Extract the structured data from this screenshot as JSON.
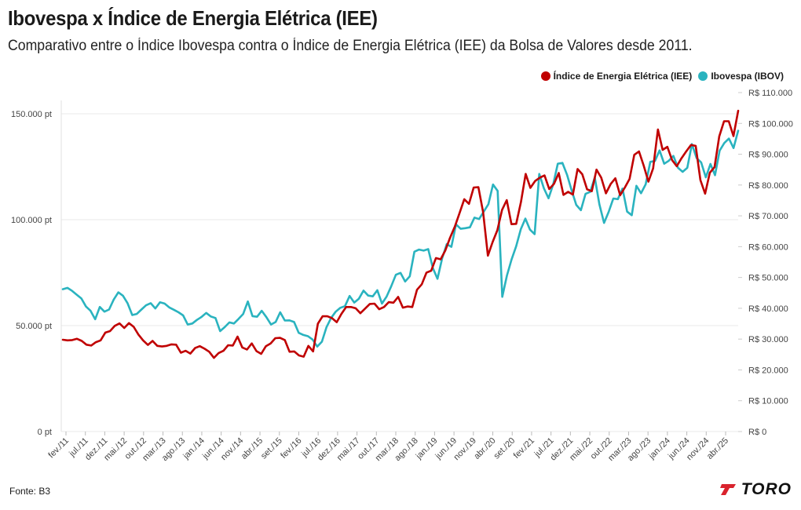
{
  "header": {
    "title": "Ibovespa x Índice de Energia Elétrica (IEE)",
    "subtitle": "Comparativo entre o Índice Ibovespa contra o Índice de Energia Elétrica (IEE) da Bolsa de Valores desde 2011."
  },
  "footer": {
    "source": "Fonte: B3",
    "logo_text": "TORO"
  },
  "colors": {
    "iee": "#c00000",
    "ibov": "#2ab3bf",
    "grid": "#e8e8e8",
    "axis_text": "#444444"
  },
  "chart_data": {
    "type": "line",
    "title": "Ibovespa x Índice de Energia Elétrica (IEE)",
    "legend_position": "top-right",
    "x_tick_labels": [
      "fev./11",
      "jul./11",
      "dez./11",
      "mai./12",
      "out./12",
      "mar./13",
      "ago./13",
      "jan./14",
      "jun./14",
      "nov./14",
      "abr./15",
      "set./15",
      "fev./16",
      "jul./16",
      "dez./16",
      "mai./17",
      "out./17",
      "mar./18",
      "ago./18",
      "jan./19",
      "jun./19",
      "nov./19",
      "abr./20",
      "set./20",
      "fev./21",
      "jul./21",
      "dez./21",
      "mai./22",
      "out./22",
      "mar./23",
      "ago./23",
      "jan./24",
      "jun./24",
      "nov./24",
      "abr./25"
    ],
    "y_left": {
      "ticks": [
        0,
        50000,
        100000,
        150000
      ],
      "tick_labels": [
        "0 pt",
        "50.000 pt",
        "100.000 pt",
        "150.000 pt"
      ],
      "range": [
        0,
        160000
      ]
    },
    "y_right": {
      "ticks": [
        0,
        10000,
        20000,
        30000,
        40000,
        50000,
        60000,
        70000,
        80000,
        90000,
        100000,
        110000
      ],
      "tick_labels": [
        "R$ 0",
        "R$ 10.000",
        "R$ 20.000",
        "R$ 30.000",
        "R$ 40.000",
        "R$ 50.000",
        "R$ 60.000",
        "R$ 70.000",
        "R$ 80.000",
        "R$ 90.000",
        "R$ 100.000",
        "R$ 110.000"
      ],
      "range": [
        0,
        110000
      ]
    },
    "series": [
      {
        "name": "Índice de Energia Elétrica (IEE)",
        "axis": "right",
        "color": "#c00000",
        "values": [
          29800,
          29600,
          29700,
          30100,
          29400,
          28200,
          27900,
          29000,
          29600,
          32100,
          32600,
          34300,
          35100,
          33600,
          35200,
          34000,
          31500,
          29600,
          28100,
          29400,
          27800,
          27600,
          27800,
          28300,
          28200,
          25600,
          26200,
          25300,
          27100,
          27700,
          26900,
          25900,
          23900,
          25500,
          26200,
          28000,
          27900,
          30800,
          27300,
          26600,
          28600,
          26100,
          25200,
          27700,
          28600,
          30300,
          30400,
          29700,
          25900,
          26000,
          24700,
          24300,
          27800,
          26000,
          35000,
          37400,
          37400,
          36800,
          35500,
          38200,
          40400,
          40400,
          40000,
          38400,
          39900,
          41400,
          41500,
          39700,
          40400,
          42000,
          41800,
          43700,
          40200,
          40600,
          40400,
          46000,
          47800,
          51600,
          52200,
          56300,
          55900,
          58800,
          62900,
          66500,
          70900,
          75400,
          73900,
          79200,
          79300,
          71200,
          57100,
          61500,
          65300,
          71900,
          75100,
          67300,
          67400,
          74500,
          83600,
          79100,
          81300,
          82400,
          83100,
          78700,
          80400,
          83900,
          76800,
          77800,
          76900,
          85200,
          83500,
          78600,
          78000,
          85000,
          82400,
          77300,
          80300,
          82200,
          76700,
          79200,
          82000,
          89800,
          90900,
          86300,
          81100,
          85400,
          98000,
          91400,
          92400,
          88100,
          86100,
          88700,
          90900,
          93000,
          92700,
          81600,
          77200,
          84000,
          85800,
          95800,
          100700,
          100700,
          95900,
          104100
        ]
      },
      {
        "name": "Ibovespa (IBOV)",
        "axis": "left",
        "color": "#2ab3bf",
        "values": [
          67200,
          67800,
          66400,
          64600,
          62800,
          59000,
          57000,
          53000,
          58800,
          56600,
          57600,
          62300,
          65700,
          64100,
          60500,
          55000,
          55500,
          57600,
          59600,
          60600,
          58100,
          61000,
          60400,
          58600,
          57500,
          56300,
          54800,
          50500,
          51000,
          52700,
          54100,
          56000,
          54300,
          53600,
          47400,
          49300,
          51500,
          51000,
          53200,
          55500,
          61400,
          54500,
          54200,
          57000,
          54000,
          50500,
          51700,
          56300,
          52400,
          52500,
          51700,
          46600,
          45600,
          45000,
          43400,
          40100,
          42400,
          49300,
          53600,
          56600,
          58400,
          59200,
          64000,
          60900,
          62700,
          66500,
          64200,
          63800,
          66700,
          60400,
          63700,
          68600,
          74000,
          74900,
          70800,
          73300,
          84900,
          85900,
          85400,
          86100,
          77200,
          72100,
          81700,
          88500,
          87200,
          97800,
          95700,
          96000,
          96400,
          101000,
          100300,
          103800,
          107300,
          116600,
          113600,
          63600,
          73600,
          81200,
          87500,
          95500,
          100500,
          95300,
          93200,
          121600,
          114800,
          110100,
          116600,
          126400,
          126800,
          121200,
          113900,
          107000,
          104500,
          112200,
          113100,
          119900,
          107200,
          98500,
          103700,
          110000,
          109700,
          114700,
          103800,
          102100,
          116000,
          112500,
          116700,
          127300,
          127700,
          132700,
          126400,
          127800,
          130100,
          124500,
          122600,
          124500,
          135700,
          129100,
          127000,
          120000,
          126300,
          121000,
          132600,
          136200,
          138300,
          133800,
          142000
        ]
      }
    ]
  }
}
